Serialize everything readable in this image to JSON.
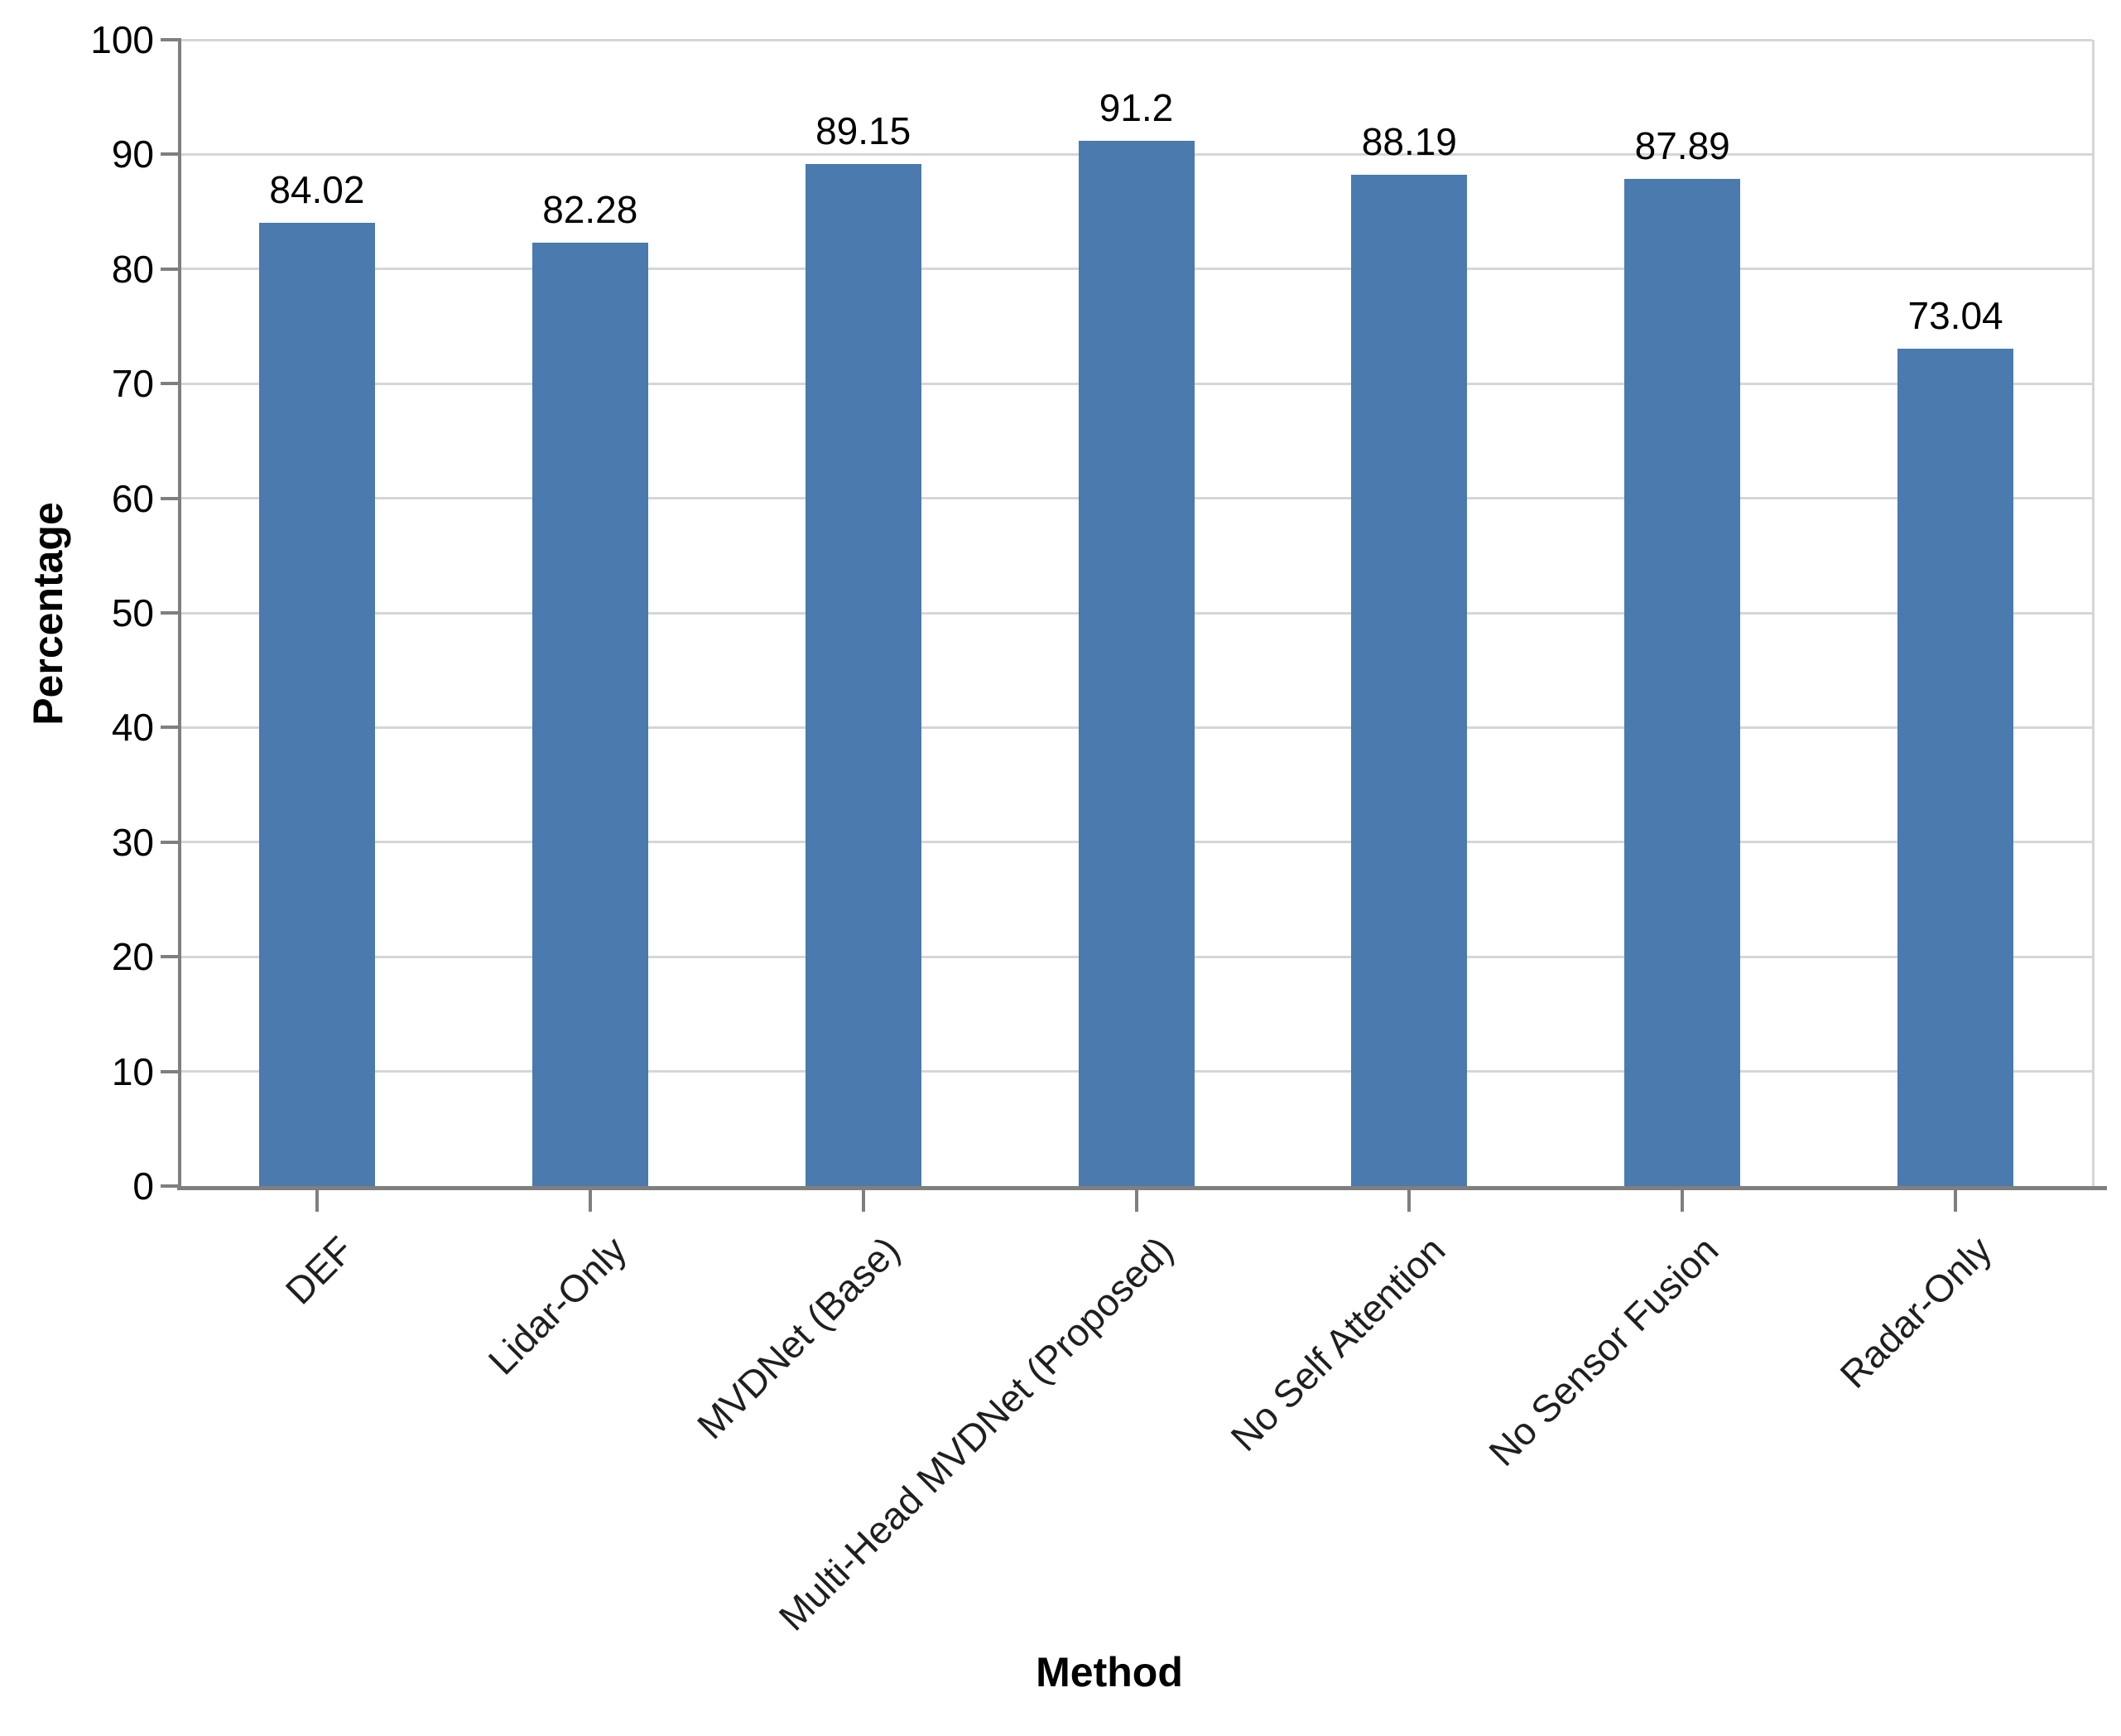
{
  "chart_data": {
    "type": "bar",
    "title": "",
    "xlabel": "Method",
    "ylabel": "Percentage",
    "categories": [
      "DEF",
      "Lidar-Only",
      "MVDNet (Base)",
      "Multi-Head MVDNet (Proposed)",
      "No Self Attention",
      "No Sensor Fusion",
      "Radar-Only"
    ],
    "values": [
      84.02,
      82.28,
      89.15,
      91.2,
      88.19,
      87.89,
      73.04
    ],
    "value_labels": [
      "84.02",
      "82.28",
      "89.15",
      "91.2",
      "88.19",
      "87.89",
      "73.04"
    ],
    "ylim": [
      0,
      100
    ],
    "yticks": [
      0,
      10,
      20,
      30,
      40,
      50,
      60,
      70,
      80,
      90,
      100
    ],
    "grid": "horizontal",
    "legend_position": "none",
    "bar_color": "#4a7aae",
    "axis_color": "#7f7f7f",
    "gridline_color": "#d6d6d6",
    "text_color": "#000000"
  }
}
